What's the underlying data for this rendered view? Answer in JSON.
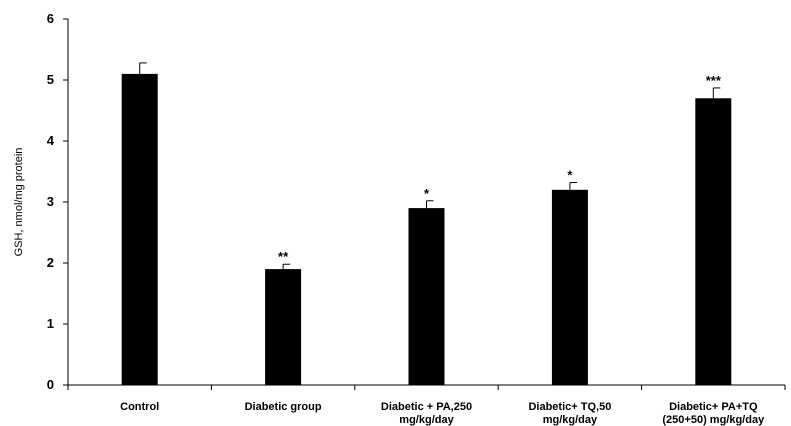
{
  "chart_data": {
    "type": "bar",
    "title": "",
    "xlabel": "",
    "ylabel": "GSH, nmol/mg protein",
    "ylim": [
      0,
      6
    ],
    "yticks": [
      0,
      1,
      2,
      3,
      4,
      5,
      6
    ],
    "grid": false,
    "legend": "none",
    "bar_color": "#000000",
    "categories": [
      [
        "Control"
      ],
      [
        "Diabetic group"
      ],
      [
        "Diabetic + PA,250",
        "mg/kg/day"
      ],
      [
        "Diabetic+ TQ,50",
        "mg/kg/day"
      ],
      [
        "Diabetic+ PA+TQ",
        "(250+50) mg/kg/day"
      ]
    ],
    "values": [
      5.1,
      1.9,
      2.9,
      3.2,
      4.7
    ],
    "errors": [
      0.18,
      0.08,
      0.12,
      0.12,
      0.17
    ],
    "annotations": [
      "",
      "**",
      "*",
      "*",
      "***"
    ]
  }
}
